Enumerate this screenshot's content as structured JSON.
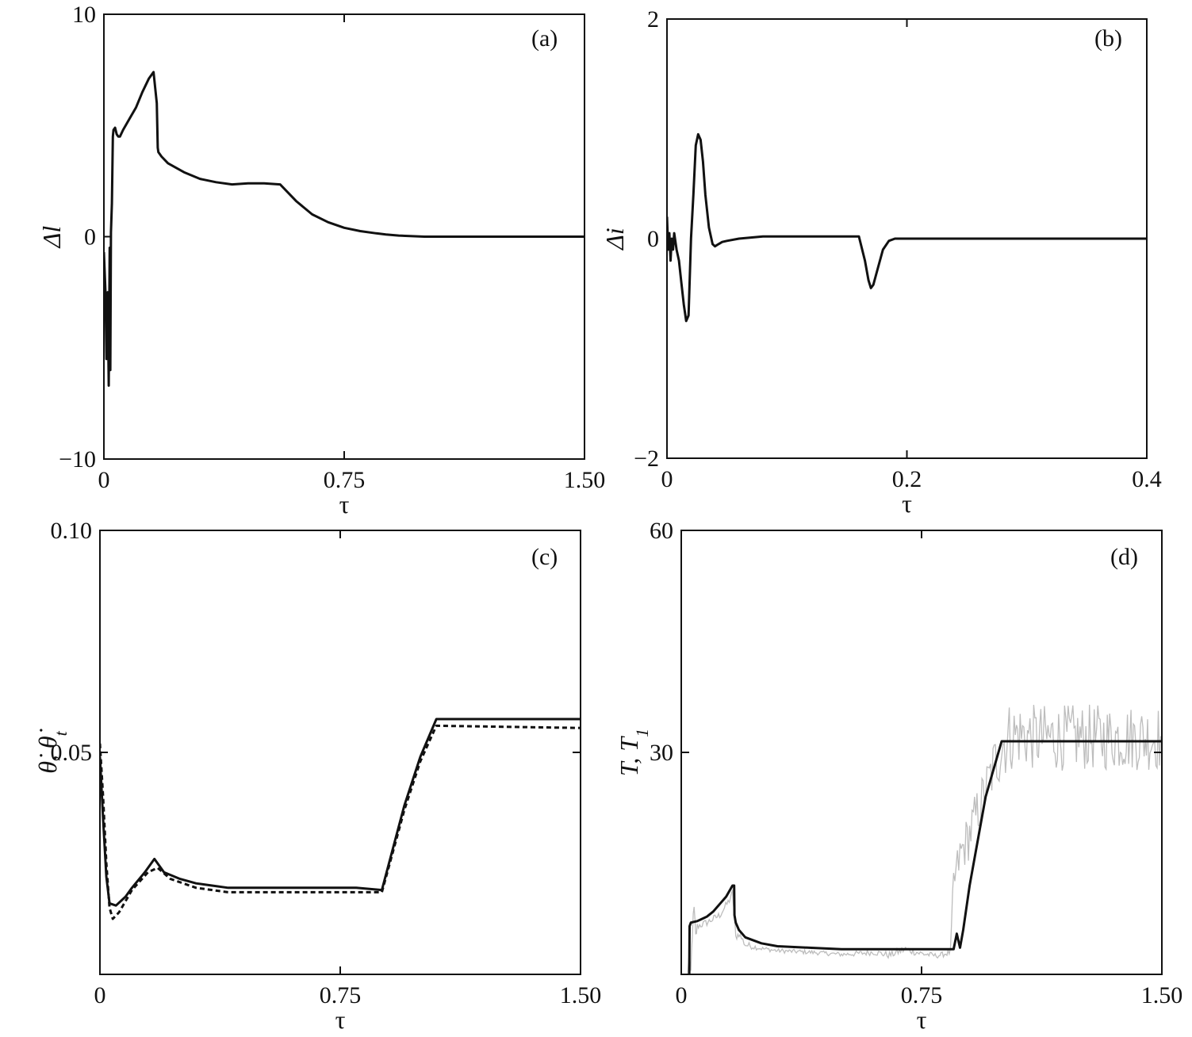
{
  "chart_data": [
    {
      "panel": "(a)",
      "type": "line",
      "xlabel": "τ",
      "ylabel": "Δl",
      "xlim": [
        0,
        1.5
      ],
      "ylim": [
        -10,
        10
      ],
      "xticks": [
        "0",
        "0.75",
        "1.50"
      ],
      "yticks": [
        "−10",
        "0",
        "10"
      ],
      "xtick_values": [
        0,
        0.75,
        1.5
      ],
      "ytick_values": [
        -10,
        0,
        10
      ],
      "series": [
        {
          "style": "solid",
          "color": "#111111",
          "x": [
            0.0,
            0.005,
            0.008,
            0.012,
            0.015,
            0.018,
            0.02,
            0.022,
            0.025,
            0.028,
            0.03,
            0.035,
            0.04,
            0.045,
            0.05,
            0.06,
            0.08,
            0.1,
            0.12,
            0.14,
            0.155,
            0.165,
            0.168,
            0.17,
            0.18,
            0.2,
            0.25,
            0.3,
            0.35,
            0.4,
            0.45,
            0.5,
            0.55,
            0.6,
            0.65,
            0.7,
            0.75,
            0.8,
            0.85,
            0.88,
            0.92,
            1.0,
            1.2,
            1.5
          ],
          "y": [
            -0.7,
            -2.5,
            -5.5,
            -2.5,
            -6.7,
            -0.5,
            -6.0,
            0.2,
            1.5,
            4.5,
            4.8,
            4.9,
            4.6,
            4.5,
            4.5,
            4.8,
            5.3,
            5.8,
            6.5,
            7.1,
            7.4,
            6.0,
            4.0,
            3.8,
            3.6,
            3.3,
            2.9,
            2.6,
            2.45,
            2.35,
            2.4,
            2.4,
            2.35,
            1.6,
            1.0,
            0.65,
            0.4,
            0.25,
            0.15,
            0.1,
            0.05,
            0.0,
            0.0,
            0.0
          ]
        }
      ]
    },
    {
      "panel": "(b)",
      "type": "line",
      "xlabel": "τ",
      "ylabel": "Δi",
      "xlim": [
        0,
        0.4
      ],
      "ylim": [
        -2,
        2
      ],
      "xticks": [
        "0",
        "0.2",
        "0.4"
      ],
      "yticks": [
        "−2",
        "0",
        "2"
      ],
      "xtick_values": [
        0,
        0.2,
        0.4
      ],
      "ytick_values": [
        -2,
        0,
        2
      ],
      "series": [
        {
          "style": "solid",
          "color": "#111111",
          "x": [
            0.0,
            0.001,
            0.002,
            0.003,
            0.004,
            0.005,
            0.006,
            0.008,
            0.01,
            0.012,
            0.014,
            0.016,
            0.018,
            0.02,
            0.022,
            0.024,
            0.026,
            0.028,
            0.03,
            0.032,
            0.035,
            0.038,
            0.04,
            0.043,
            0.046,
            0.05,
            0.06,
            0.08,
            0.1,
            0.12,
            0.14,
            0.16,
            0.165,
            0.168,
            0.17,
            0.172,
            0.175,
            0.18,
            0.185,
            0.19,
            0.2,
            0.25,
            0.3,
            0.4
          ],
          "y": [
            0.2,
            -0.1,
            0.05,
            -0.2,
            0.0,
            -0.1,
            0.05,
            -0.1,
            -0.2,
            -0.4,
            -0.6,
            -0.75,
            -0.7,
            0.0,
            0.4,
            0.85,
            0.95,
            0.9,
            0.7,
            0.4,
            0.1,
            -0.05,
            -0.07,
            -0.05,
            -0.03,
            -0.02,
            0.0,
            0.02,
            0.02,
            0.02,
            0.02,
            0.02,
            -0.2,
            -0.38,
            -0.45,
            -0.42,
            -0.3,
            -0.1,
            -0.02,
            0.0,
            0.0,
            0.0,
            0.0,
            0.0
          ]
        }
      ]
    },
    {
      "panel": "(c)",
      "type": "line",
      "xlabel": "τ",
      "ylabel": "θ̇, θ̇",
      "ylabel_sub": "t",
      "xlim": [
        0,
        1.5
      ],
      "ylim": [
        0,
        0.1
      ],
      "xticks": [
        "0",
        "0.75",
        "1.50"
      ],
      "yticks": [
        "0.05",
        "0.10"
      ],
      "xtick_values": [
        0,
        0.75,
        1.5
      ],
      "ytick_values": [
        0.05,
        0.1
      ],
      "series": [
        {
          "style": "solid",
          "color": "#111111",
          "x": [
            0.0,
            0.01,
            0.02,
            0.03,
            0.05,
            0.08,
            0.1,
            0.14,
            0.17,
            0.2,
            0.25,
            0.3,
            0.35,
            0.4,
            0.5,
            0.6,
            0.7,
            0.8,
            0.88,
            0.95,
            1.0,
            1.05,
            1.5
          ],
          "y": [
            0.049,
            0.035,
            0.022,
            0.016,
            0.0155,
            0.0175,
            0.0195,
            0.023,
            0.026,
            0.023,
            0.0215,
            0.0205,
            0.02,
            0.0195,
            0.0195,
            0.0195,
            0.0195,
            0.0195,
            0.019,
            0.038,
            0.049,
            0.0575,
            0.0575
          ]
        },
        {
          "style": "dashed",
          "color": "#111111",
          "x": [
            0.0,
            0.01,
            0.02,
            0.025,
            0.03,
            0.04,
            0.06,
            0.1,
            0.15,
            0.18,
            0.22,
            0.3,
            0.4,
            0.5,
            0.6,
            0.7,
            0.8,
            0.88,
            0.95,
            1.0,
            1.05,
            1.5
          ],
          "y": [
            0.052,
            0.04,
            0.025,
            0.02,
            0.015,
            0.0125,
            0.014,
            0.019,
            0.023,
            0.024,
            0.0215,
            0.0195,
            0.0185,
            0.0185,
            0.0185,
            0.0185,
            0.0185,
            0.0185,
            0.037,
            0.048,
            0.056,
            0.0555
          ]
        }
      ]
    },
    {
      "panel": "(d)",
      "type": "line",
      "xlabel": "τ",
      "ylabel": "T, T",
      "ylabel_sub": "1",
      "xlim": [
        0,
        1.5
      ],
      "ylim": [
        0,
        60
      ],
      "xticks": [
        "0",
        "0.75",
        "1.50"
      ],
      "yticks": [
        "30",
        "60"
      ],
      "xtick_values": [
        0,
        0.75,
        1.5
      ],
      "ytick_values": [
        30,
        60
      ],
      "series": [
        {
          "style": "noisy",
          "color": "#bdbdbd",
          "x": [
            0.02,
            0.025,
            0.03,
            0.035,
            0.04,
            0.045,
            0.05,
            0.08,
            0.12,
            0.15,
            0.16,
            0.165,
            0.17,
            0.18,
            0.2,
            0.25,
            0.3,
            0.4,
            0.5,
            0.55,
            0.6,
            0.65,
            0.7,
            0.75,
            0.8,
            0.84,
            0.85,
            0.87,
            0.9,
            0.95,
            1.0,
            1.02,
            1.05,
            1.1,
            1.2,
            1.3,
            1.4,
            1.5
          ],
          "y": [
            0.0,
            3.0,
            0.5,
            6.0,
            8.5,
            5.0,
            6.5,
            7.0,
            8.0,
            10.0,
            11.0,
            8.5,
            5.0,
            5.5,
            4.0,
            3.5,
            3.2,
            3.0,
            2.7,
            2.8,
            3.0,
            2.6,
            3.4,
            2.8,
            2.5,
            3.0,
            12.0,
            16.0,
            19.0,
            25.0,
            31.0,
            32.0,
            32.5,
            32.0,
            32.0,
            32.0,
            32.0,
            32.0
          ],
          "noise": [
            0,
            0,
            0,
            1,
            1.5,
            1,
            0.5,
            0.5,
            0.5,
            0.5,
            0.5,
            0.5,
            0.5,
            0.5,
            0.5,
            0.3,
            0.3,
            0.3,
            0.3,
            0.4,
            0.4,
            0.5,
            0.5,
            0.5,
            0.3,
            0.5,
            3.0,
            3.0,
            3.5,
            3.5,
            5.0,
            5.0,
            4.5,
            4.5,
            4.5,
            4.5,
            4.5,
            4.5
          ]
        },
        {
          "style": "solid",
          "color": "#111111",
          "x": [
            0.025,
            0.026,
            0.03,
            0.05,
            0.08,
            0.1,
            0.12,
            0.14,
            0.16,
            0.165,
            0.166,
            0.17,
            0.18,
            0.2,
            0.25,
            0.3,
            0.4,
            0.5,
            0.6,
            0.7,
            0.8,
            0.85,
            0.86,
            0.87,
            0.88,
            0.9,
            0.95,
            1.0,
            1.05,
            1.5
          ],
          "y": [
            0.0,
            6.5,
            7.0,
            7.2,
            7.8,
            8.5,
            9.5,
            10.5,
            12.0,
            12.0,
            8.0,
            7.0,
            6.0,
            5.0,
            4.2,
            3.8,
            3.6,
            3.4,
            3.4,
            3.4,
            3.4,
            3.4,
            5.5,
            3.6,
            6.0,
            12.0,
            24.0,
            31.5,
            31.5,
            31.5
          ]
        }
      ]
    }
  ]
}
